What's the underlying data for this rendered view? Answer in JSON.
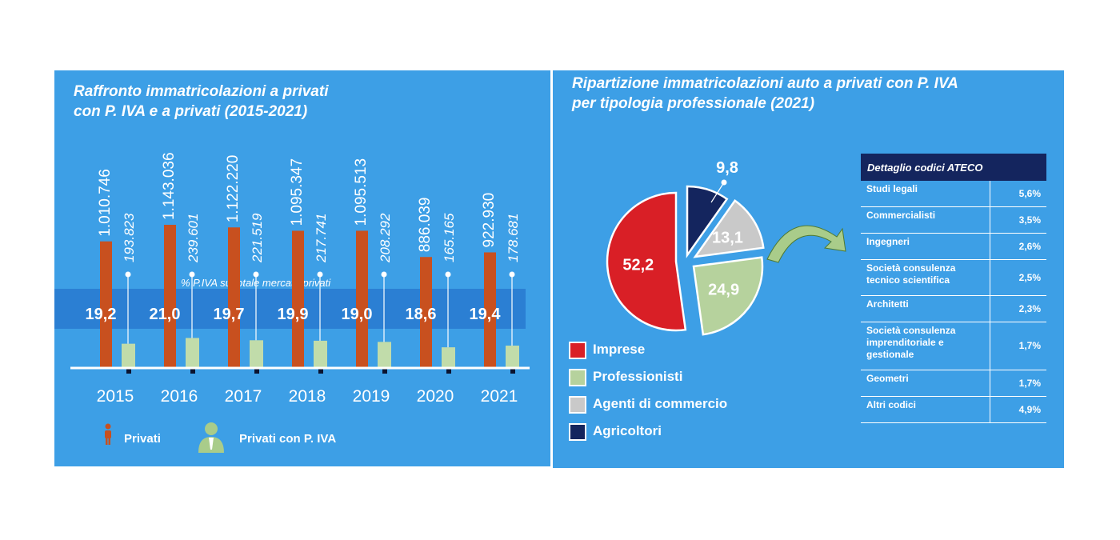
{
  "chart_data": [
    {
      "type": "bar",
      "title_lines": [
        "Raffronto immatricolazioni a privati",
        "con P. IVA e a privati (2015-2021)"
      ],
      "categories": [
        "2015",
        "2016",
        "2017",
        "2018",
        "2019",
        "2020",
        "2021"
      ],
      "series": [
        {
          "name": "Privati",
          "color": "#c8501f",
          "values": [
            1010746,
            1143036,
            1122220,
            1095347,
            1095513,
            886039,
            922930
          ],
          "labels": [
            "1.010.746",
            "1.143.036",
            "1.122.220",
            "1.095.347",
            "1.095.513",
            "886.039",
            "922.930"
          ]
        },
        {
          "name": "Privati con P. IVA",
          "color": "#c1dcaa",
          "values": [
            193823,
            239601,
            221519,
            217741,
            208292,
            165165,
            178681
          ],
          "labels": [
            "193.823",
            "239.601",
            "221.519",
            "217.741",
            "208.292",
            "165.165",
            "178.681"
          ]
        }
      ],
      "share": {
        "label": "% P.IVA su totale mercato privati",
        "values": [
          "19,2",
          "21,0",
          "19,7",
          "19,9",
          "19,0",
          "18,6",
          "19,4"
        ]
      }
    },
    {
      "type": "pie",
      "title_lines": [
        "Ripartizione immatricolazioni auto a privati con P. IVA",
        "per tipologia professionale (2021)"
      ],
      "slices": [
        {
          "name": "Imprese",
          "value": 52.2,
          "label": "52,2",
          "color": "#d91f26"
        },
        {
          "name": "Professionisti",
          "value": 24.9,
          "label": "24,9",
          "color": "#b6d29d"
        },
        {
          "name": "Agenti di commercio",
          "value": 13.1,
          "label": "13,1",
          "color": "#c9c9c9"
        },
        {
          "name": "Agricoltori",
          "value": 9.8,
          "label": "9,8",
          "color": "#14255e"
        }
      ],
      "table": {
        "header": "Dettaglio codici ATECO",
        "rows": [
          {
            "lines": [
              "Studi legali"
            ],
            "pct": "5,6%"
          },
          {
            "lines": [
              "Commercialisti"
            ],
            "pct": "3,5%"
          },
          {
            "lines": [
              "Ingegneri"
            ],
            "pct": "2,6%"
          },
          {
            "lines": [
              "Società consulenza",
              "tecnico scientifica"
            ],
            "pct": "2,5%"
          },
          {
            "lines": [
              "Architetti"
            ],
            "pct": "2,3%"
          },
          {
            "lines": [
              "Società consulenza",
              "imprenditoriale e",
              "gestionale"
            ],
            "pct": "1,7%"
          },
          {
            "lines": [
              "Geometri"
            ],
            "pct": "1,7%"
          },
          {
            "lines": [
              "Altri codici"
            ],
            "pct": "4,9%"
          }
        ]
      }
    }
  ]
}
